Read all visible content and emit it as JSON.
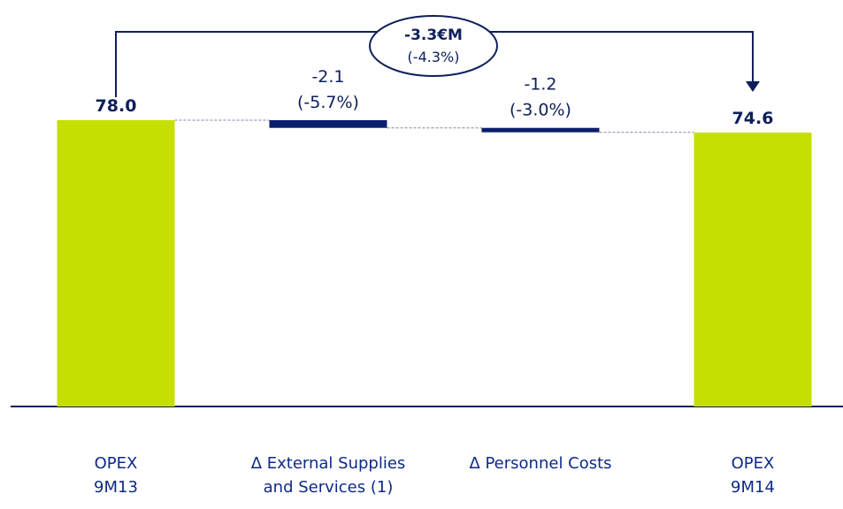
{
  "chart_data": {
    "type": "waterfall",
    "categories": [
      [
        "OPEX",
        "9M13"
      ],
      [
        "Δ External Supplies",
        "and Services (1)"
      ],
      [
        "Δ Personnel Costs"
      ],
      [
        "OPEX",
        "9M14"
      ]
    ],
    "values": [
      78.0,
      -2.1,
      -1.2,
      74.6
    ],
    "value_labels": [
      "78.0",
      "-2.1",
      "-1.2",
      "74.6"
    ],
    "percent_labels": [
      null,
      "(-5.7%)",
      "(-3.0%)",
      null
    ],
    "measure": [
      "absolute",
      "relative",
      "relative",
      "absolute"
    ],
    "total_color": "#c5e000",
    "delta_color": "#0a1f6e",
    "annotation": {
      "value": "-3.3€M",
      "percent": "(-4.3%)"
    }
  }
}
